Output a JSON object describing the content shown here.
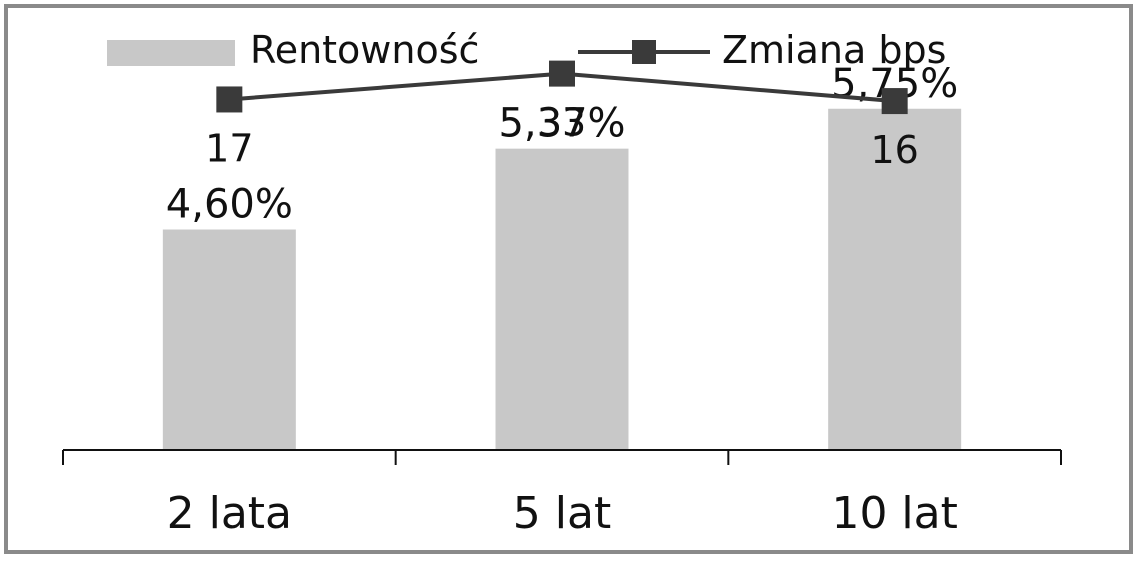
{
  "chart_data": {
    "type": "bar",
    "title": "",
    "xlabel": "",
    "ylabel": "",
    "categories": [
      "2 lata",
      "5 lat",
      "10 lat"
    ],
    "series": [
      {
        "name": "Rentowność",
        "type": "bar",
        "values": [
          4.6,
          5.37,
          5.75
        ],
        "labels": [
          "4,60%",
          "5,37%",
          "5,75%"
        ],
        "color": "#c8c8c8"
      },
      {
        "name": "Zmiana bps",
        "type": "line",
        "values": [
          17,
          33,
          16
        ],
        "labels": [
          "17",
          "33",
          "16"
        ],
        "color": "#3a3a3a",
        "marker": "square"
      }
    ],
    "ylim_bars": [
      2.5,
      6.5
    ],
    "ylim_line": [
      -200,
      60
    ],
    "legend": "top",
    "grid": false
  }
}
